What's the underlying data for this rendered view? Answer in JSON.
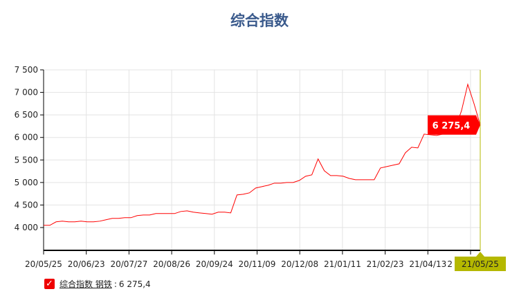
{
  "chart_data": {
    "type": "line",
    "title": "综合指数",
    "ylim": [
      3500,
      7500
    ],
    "yticks": [
      4000,
      4500,
      5000,
      5500,
      6000,
      6500,
      7000,
      7500
    ],
    "ytick_labels": [
      "4 000",
      "4 500",
      "5 000",
      "5 500",
      "6 000",
      "6 500",
      "7 000",
      "7 500"
    ],
    "xtick_labels": [
      "20/05/25",
      "20/06/23",
      "20/07/27",
      "20/08/26",
      "20/09/24",
      "20/11/09",
      "20/12/08",
      "21/01/11",
      "21/02/23",
      "21/04/13",
      "2"
    ],
    "x_start": "20/05/25",
    "x_end": "21/05/25",
    "grid": true,
    "series": [
      {
        "name": "综合指数 钢铁",
        "color": "#ff0000",
        "values": [
          4049,
          4049,
          4126,
          4141,
          4126,
          4126,
          4141,
          4126,
          4126,
          4141,
          4172,
          4203,
          4203,
          4218,
          4218,
          4264,
          4279,
          4279,
          4310,
          4310,
          4310,
          4310,
          4356,
          4371,
          4341,
          4325,
          4310,
          4295,
          4341,
          4341,
          4325,
          4724,
          4739,
          4770,
          4877,
          4908,
          4939,
          4985,
          4985,
          5000,
          5000,
          5046,
          5138,
          5169,
          5522,
          5260,
          5153,
          5153,
          5140,
          5090,
          5061,
          5061,
          5061,
          5061,
          5322,
          5353,
          5383,
          5414,
          5660,
          5782,
          5767,
          6074,
          6058,
          6043,
          6074,
          6120,
          6200,
          6595,
          7178,
          6750,
          6275.4
        ]
      }
    ],
    "crosshair_date": "21/05/25",
    "last_value_label": "6 275,4",
    "crosshair_color": "#b5b800",
    "legend": {
      "placement": "bottom-left",
      "name": "综合指数 钢铁",
      "value": "6 275,4",
      "separator": ":"
    }
  }
}
